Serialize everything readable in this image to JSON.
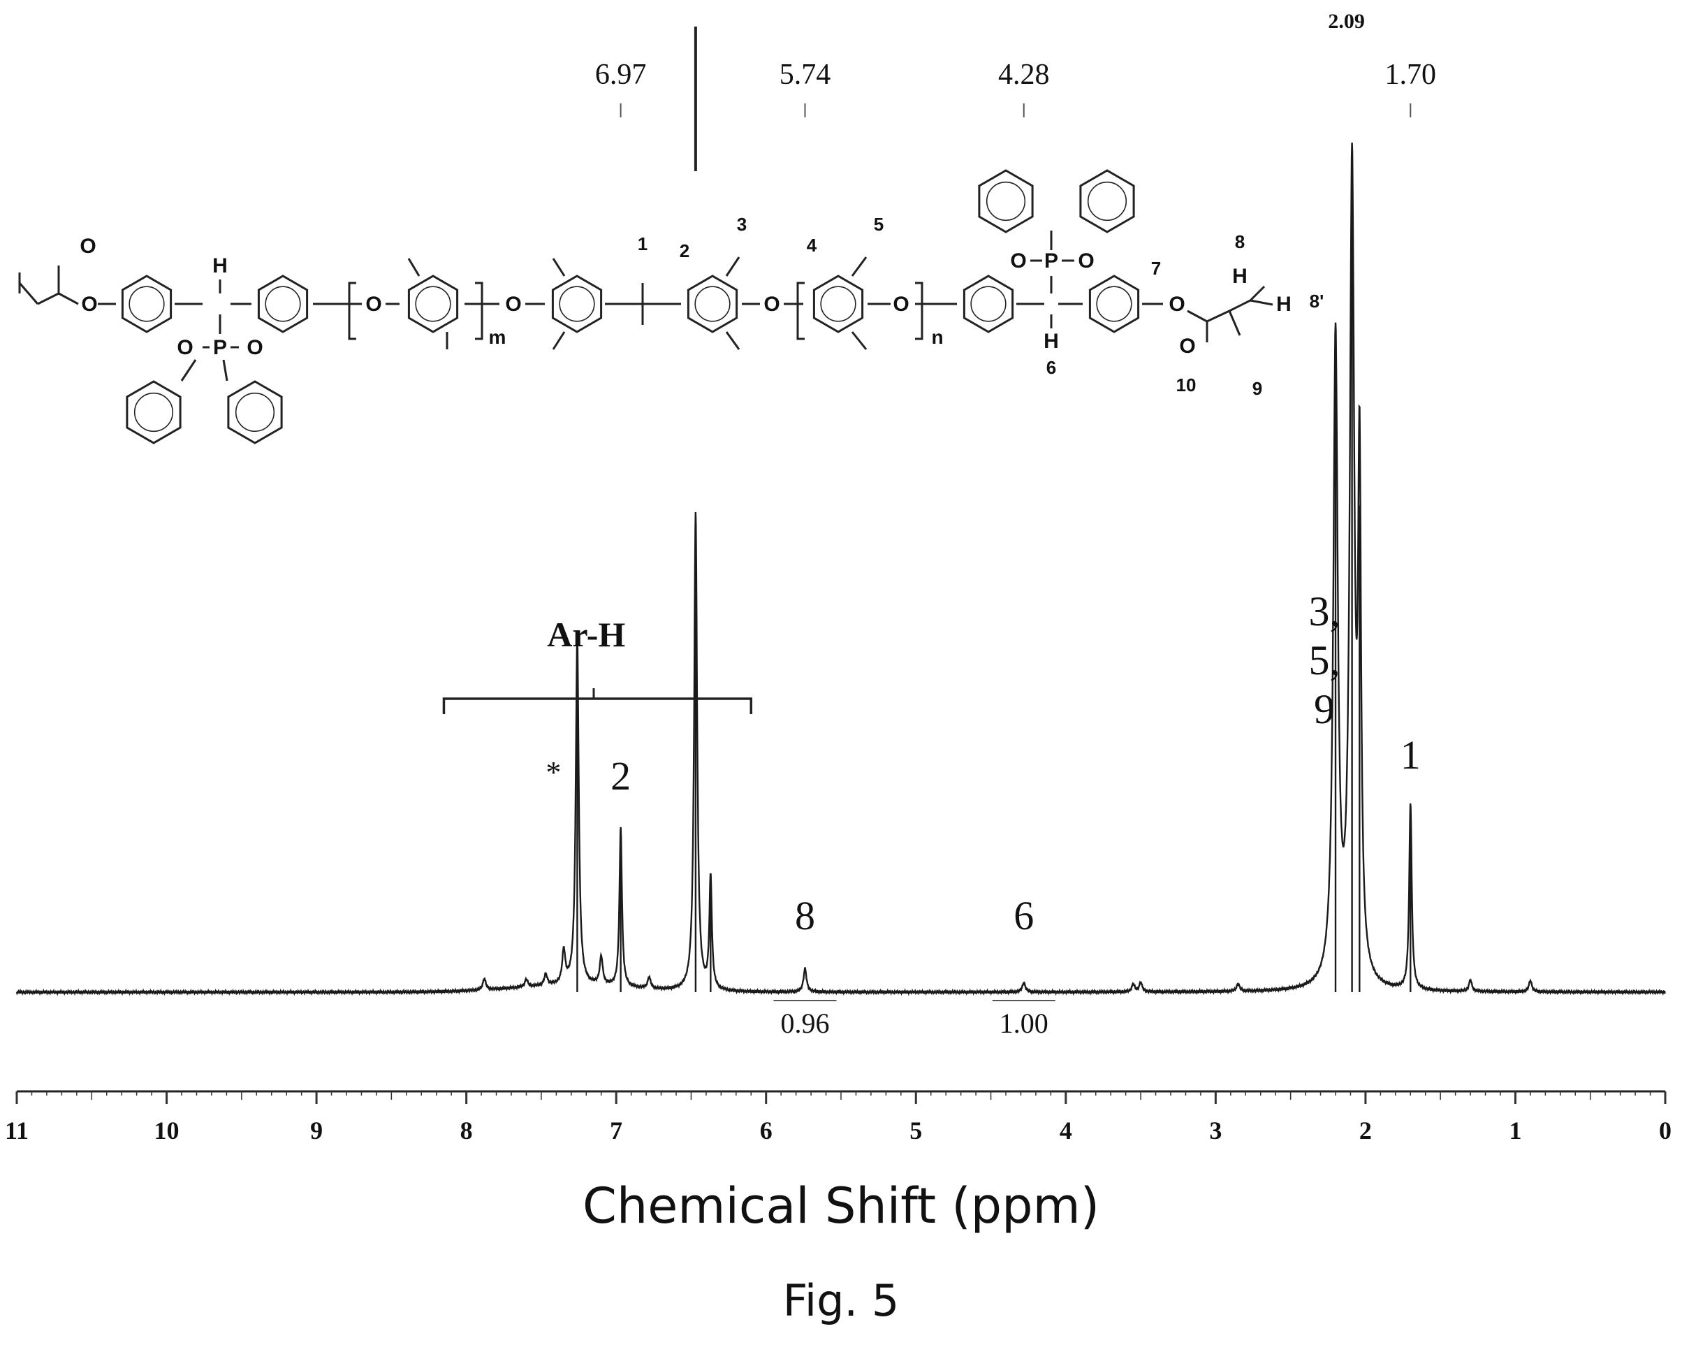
{
  "chart_data": {
    "type": "line",
    "xlabel": "Chemical Shift (ppm)",
    "xlim": [
      11,
      0
    ],
    "x_ticks": [
      11,
      10,
      9,
      8,
      7,
      6,
      5,
      4,
      3,
      2,
      1,
      0
    ],
    "x_tick_labels": [
      "11",
      "10",
      "9",
      "8",
      "7",
      "6",
      "5",
      "4",
      "3",
      "2",
      "1",
      "0"
    ],
    "grid": false,
    "peak_picks": [
      {
        "shift": 6.97,
        "label": "6.97"
      },
      {
        "shift": 5.74,
        "label": "5.74"
      },
      {
        "shift": 4.28,
        "label": "4.28"
      },
      {
        "shift": 2.09,
        "label": "2.09"
      },
      {
        "shift": 1.7,
        "label": "1.70"
      }
    ],
    "integrals": [
      {
        "shift": 5.74,
        "value": 0.96,
        "label": "0.96"
      },
      {
        "shift": 4.28,
        "value": 1.0,
        "label": "1.00"
      }
    ],
    "peak_assignments": [
      {
        "shift": 7.26,
        "label": "*"
      },
      {
        "shift": 6.97,
        "label": "2"
      },
      {
        "shift": 5.74,
        "label": "8"
      },
      {
        "shift": 4.28,
        "label": "6"
      },
      {
        "shift": 2.2,
        "label": "3,\n5,\n9"
      },
      {
        "shift": 1.7,
        "label": "1"
      }
    ],
    "region_labels": [
      {
        "from": 8.15,
        "to": 6.1,
        "label": "Ar-H"
      }
    ],
    "peaks": [
      {
        "shift": 7.88,
        "height": 0.012
      },
      {
        "shift": 7.6,
        "height": 0.008
      },
      {
        "shift": 7.47,
        "height": 0.012
      },
      {
        "shift": 7.35,
        "height": 0.035
      },
      {
        "shift": 7.26,
        "height": 0.37
      },
      {
        "shift": 7.1,
        "height": 0.03
      },
      {
        "shift": 6.97,
        "height": 0.17
      },
      {
        "shift": 6.78,
        "height": 0.012
      },
      {
        "shift": 6.47,
        "height": 0.51
      },
      {
        "shift": 6.37,
        "height": 0.12
      },
      {
        "shift": 5.74,
        "height": 0.025
      },
      {
        "shift": 4.28,
        "height": 0.01
      },
      {
        "shift": 3.55,
        "height": 0.008
      },
      {
        "shift": 3.5,
        "height": 0.01
      },
      {
        "shift": 2.85,
        "height": 0.008
      },
      {
        "shift": 2.2,
        "height": 0.69
      },
      {
        "shift": 2.09,
        "height": 0.86
      },
      {
        "shift": 2.04,
        "height": 0.52
      },
      {
        "shift": 1.7,
        "height": 0.2
      },
      {
        "shift": 1.3,
        "height": 0.012
      },
      {
        "shift": 0.9,
        "height": 0.012
      }
    ]
  },
  "structure": {
    "atom_labels": [
      "O",
      "O",
      "H",
      "O",
      "P",
      "O",
      "O",
      "O",
      "O",
      "O",
      "O",
      "O",
      "O",
      "P",
      "O",
      "H",
      "H",
      "O",
      "O",
      "H"
    ],
    "subscripts": [
      "m",
      "n"
    ],
    "proton_numbers": [
      "1",
      "2",
      "3",
      "4",
      "5",
      "6",
      "7",
      "8",
      "8'",
      "9",
      "10"
    ]
  },
  "caption": "Fig. 5"
}
